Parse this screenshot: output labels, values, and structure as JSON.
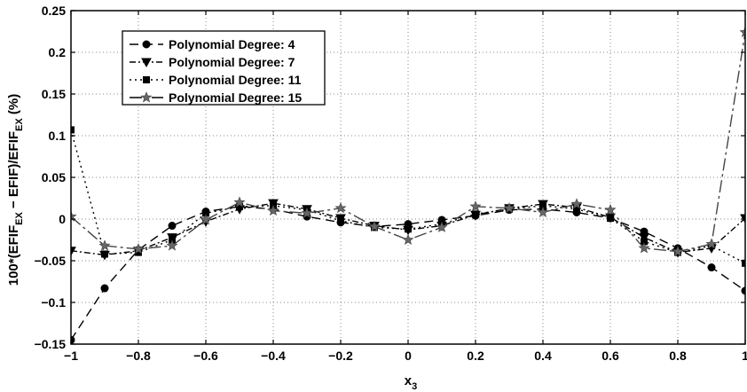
{
  "chart_data": {
    "type": "line",
    "xlabel": "x",
    "xlabel_sub": "3",
    "ylabel_parts": [
      "100*(EFIF",
      "EX",
      " − EFIF)/EFIF",
      "EX",
      "   (%)"
    ],
    "xlim": [
      -1,
      1
    ],
    "ylim": [
      -0.15,
      0.25
    ],
    "grid": true,
    "legend_position": "top-left",
    "x_ticks": [
      -1,
      -0.8,
      -0.6,
      -0.4,
      -0.2,
      0,
      0.2,
      0.4,
      0.6,
      0.8,
      1
    ],
    "x_tick_labels": [
      "−1",
      "−0.8",
      "−0.6",
      "−0.4",
      "−0.2",
      "0",
      "0.2",
      "0.4",
      "0.6",
      "0.8",
      "1"
    ],
    "y_ticks": [
      -0.15,
      -0.1,
      -0.05,
      0,
      0.05,
      0.1,
      0.15,
      0.2,
      0.25
    ],
    "y_tick_labels": [
      "−0.15",
      "−0.1",
      "−0.05",
      "0",
      "0.05",
      "0.1",
      "0.15",
      "0.2",
      "0.25"
    ],
    "x": [
      -1,
      -0.9,
      -0.8,
      -0.7,
      -0.6,
      -0.5,
      -0.4,
      -0.3,
      -0.2,
      -0.1,
      0,
      0.1,
      0.2,
      0.3,
      0.4,
      0.5,
      0.6,
      0.7,
      0.8,
      0.9,
      1
    ],
    "series": [
      {
        "name": "Polynomial Degree: 4",
        "marker": "circle",
        "dash": "10,6",
        "values": [
          -0.145,
          -0.083,
          -0.037,
          -0.008,
          0.009,
          0.015,
          0.012,
          0.003,
          -0.004,
          -0.009,
          -0.006,
          -0.001,
          0.004,
          0.011,
          0.012,
          0.008,
          0.001,
          -0.015,
          -0.035,
          -0.058,
          -0.086
        ]
      },
      {
        "name": "Polynomial Degree: 7",
        "marker": "triangle-down",
        "dash": "7,3,2,3",
        "values": [
          -0.038,
          -0.043,
          -0.038,
          -0.022,
          -0.003,
          0.012,
          0.019,
          0.012,
          0.001,
          -0.008,
          -0.013,
          -0.008,
          0.005,
          0.013,
          0.018,
          0.014,
          0.002,
          -0.022,
          -0.04,
          -0.035,
          0.001
        ]
      },
      {
        "name": "Polynomial Degree: 11",
        "marker": "square",
        "dash": "2,4",
        "values": [
          0.107,
          -0.042,
          -0.04,
          -0.025,
          0.007,
          0.015,
          0.016,
          0.011,
          -0.002,
          -0.01,
          -0.012,
          -0.006,
          0.006,
          0.012,
          0.016,
          0.012,
          0.001,
          -0.027,
          -0.04,
          -0.032,
          -0.053
        ]
      },
      {
        "name": "Polynomial Degree: 15",
        "marker": "star",
        "dash": "14,4,3,4",
        "values": [
          0.003,
          -0.032,
          -0.036,
          -0.032,
          -0.001,
          0.02,
          0.01,
          0.007,
          0.013,
          -0.009,
          -0.025,
          -0.01,
          0.015,
          0.013,
          0.008,
          0.018,
          0.011,
          -0.035,
          -0.039,
          -0.03,
          0.224
        ]
      }
    ]
  }
}
